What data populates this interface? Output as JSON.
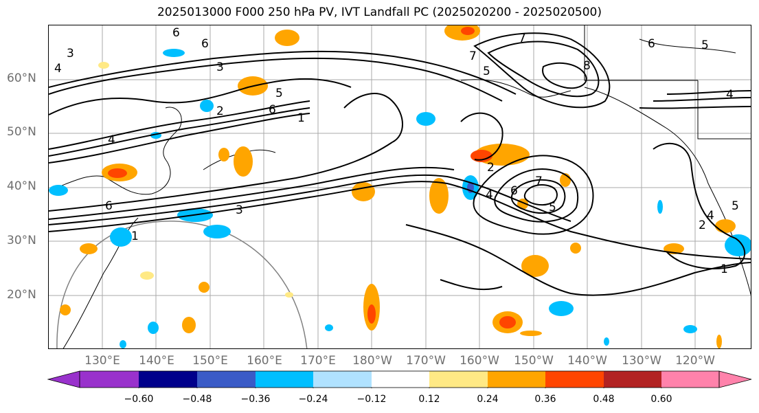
{
  "title": "2025013000 F000 250 hPa PV, IVT Landfall PC (2025020200 - 2025020500)",
  "lat_labels": [
    "60°N",
    "50°N",
    "40°N",
    "30°N",
    "20°N"
  ],
  "lon_labels": [
    "130°E",
    "140°E",
    "150°E",
    "160°E",
    "170°E",
    "180°W",
    "170°W",
    "160°W",
    "150°W",
    "140°W",
    "130°W",
    "120°W"
  ],
  "contour_labels": [
    "6",
    "6",
    "3",
    "4",
    "3",
    "2",
    "1",
    "7",
    "8",
    "5",
    "7",
    "6",
    "5",
    "4",
    "2",
    "4",
    "6",
    "7",
    "5",
    "3",
    "1",
    "6",
    "5",
    "4",
    "2",
    "1",
    "4",
    "5",
    "6"
  ],
  "colorbar": {
    "ticks": [
      "−0.60",
      "−0.48",
      "−0.36",
      "−0.24",
      "−0.12",
      "0.12",
      "0.24",
      "0.36",
      "0.48",
      "0.60"
    ],
    "colors": [
      "#9932cc",
      "#00008b",
      "#3a5bc7",
      "#00bfff",
      "#b0e2ff",
      "#ffffff",
      "#ffe985",
      "#ffa500",
      "#ff4500",
      "#b22222",
      "#ff82ab"
    ]
  }
}
